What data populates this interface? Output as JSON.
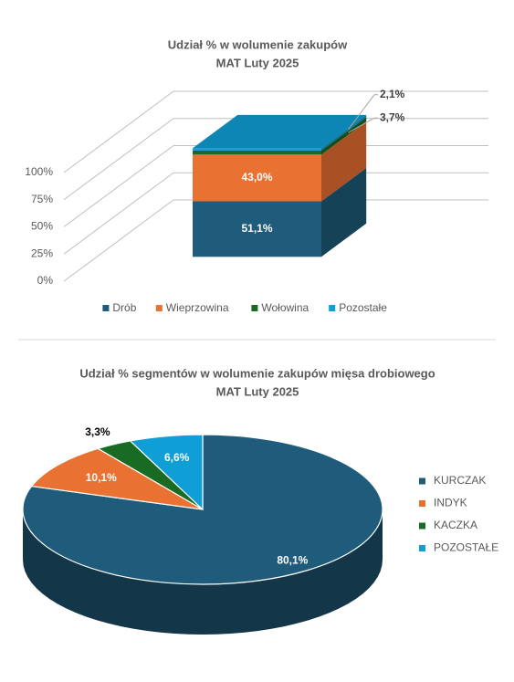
{
  "chart_data": [
    {
      "type": "bar3d_stacked",
      "title": "Udział % w wolumenie zakupów",
      "subtitle": "MAT Luty 2025",
      "categories": [
        null
      ],
      "series": [
        {
          "name": "Drób",
          "color": "#1f5b7a",
          "values": [
            51.1
          ],
          "value_labels": [
            "51,1%"
          ]
        },
        {
          "name": "Wieprzowina",
          "color": "#e97132",
          "values": [
            43.0
          ],
          "value_labels": [
            "43,0%"
          ]
        },
        {
          "name": "Wołowina",
          "color": "#196b24",
          "values": [
            3.7
          ],
          "value_labels": [
            "3,7%"
          ]
        },
        {
          "name": "Pozostałe",
          "color": "#0f9ed5",
          "values": [
            2.1
          ],
          "value_labels": [
            "2,1%"
          ]
        }
      ],
      "ylim": [
        0,
        100
      ],
      "yticks": [
        {
          "value": 0,
          "label": "0%"
        },
        {
          "value": 25,
          "label": "25%"
        },
        {
          "value": 50,
          "label": "50%"
        },
        {
          "value": 75,
          "label": "75%"
        },
        {
          "value": 100,
          "label": "100%"
        }
      ],
      "grid": true,
      "legend": "bottom"
    },
    {
      "type": "pie3d",
      "title": "Udział % segmentów w wolumenie zakupów mięsa drobiowego",
      "subtitle": "MAT Luty 2025",
      "categories": [
        "KURCZAK",
        "INDYK",
        "KACZKA",
        "POZOSTAŁE"
      ],
      "values": [
        80.1,
        10.1,
        3.3,
        6.6
      ],
      "value_labels": [
        "80,1%",
        "10,1%",
        "3,3%",
        "6,6%"
      ],
      "colors": [
        "#1f5b7a",
        "#e97132",
        "#196b24",
        "#0f9ed5"
      ],
      "legend": "right"
    }
  ]
}
